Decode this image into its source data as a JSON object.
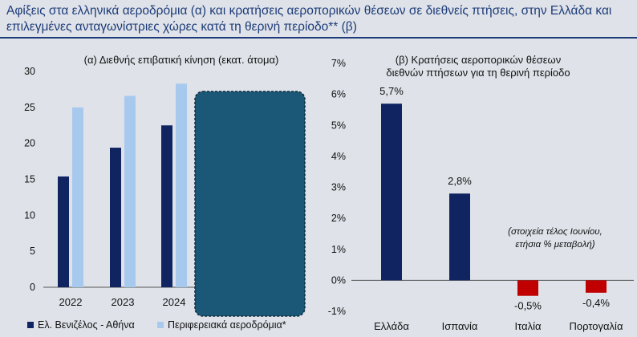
{
  "title": "Αφίξεις στα ελληνικά αεροδρόμια (α) και κρατήσεις αεροπορικών θέσεων σε διεθνείς πτήσεις, στην Ελλάδα και επιλεγμένες ανταγωνίστριες χώρες κατά τη θερινή περίοδο** (β)",
  "colors": {
    "navy": "#0f2461",
    "light_blue": "#a8c9ee",
    "red": "#c00000",
    "overlay": "#1b5877"
  },
  "chart_data": [
    {
      "type": "bar",
      "title": "(α) Διεθνής επιβατική κίνηση (εκατ. άτομα)",
      "categories": [
        "2022",
        "2023",
        "2024"
      ],
      "series": [
        {
          "name": "Ελ. Βενιζέλος - Αθήνα",
          "values": [
            15.4,
            19.4,
            22.5
          ]
        },
        {
          "name": "Περιφερειακά αεροδρόμια*",
          "values": [
            25.0,
            26.6,
            28.3
          ]
        }
      ],
      "ylim": [
        0,
        30
      ],
      "yticks": [
        "0",
        "5",
        "10",
        "15",
        "20",
        "25",
        "30"
      ],
      "legend": "bottom",
      "grid": false
    },
    {
      "type": "bar",
      "title_lines": [
        "(β) Κρατήσεις αεροπορικών θέσεων",
        "διεθνών πτήσεων για τη θερινή περίοδο"
      ],
      "categories": [
        "Ελλάδα",
        "Ισπανία",
        "Ιταλία",
        "Πορτογαλία"
      ],
      "values": [
        5.7,
        2.8,
        -0.5,
        -0.4
      ],
      "data_labels": [
        "5,7%",
        "2,8%",
        "-0,5%",
        "-0,4%"
      ],
      "ylim": [
        -1,
        7
      ],
      "yticks": [
        "-1%",
        "0%",
        "1%",
        "2%",
        "3%",
        "4%",
        "5%",
        "6%",
        "7%"
      ],
      "annotation": [
        "(στοιχεία τέλος Ιουνίου,",
        "ετήσια % μεταβολή)"
      ],
      "grid": false
    }
  ]
}
